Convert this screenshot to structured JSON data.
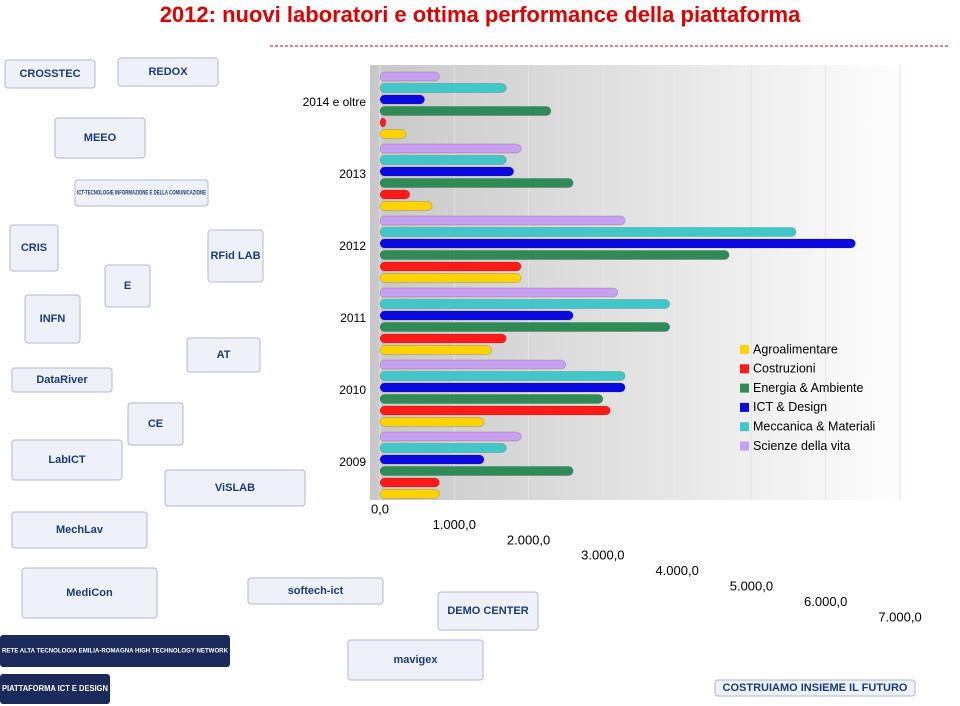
{
  "chart_data": {
    "type": "hbar",
    "title": "2012: nuovi laboratori e ottima performance della piattaforma",
    "categories": [
      "2014 e oltre",
      "2013",
      "2012",
      "2011",
      "2010",
      "2009"
    ],
    "series": [
      {
        "name": "Agroalimentare",
        "color": "#ffd200",
        "values": [
          350,
          700,
          1900,
          1500,
          1400,
          800
        ]
      },
      {
        "name": "Costruzioni",
        "color": "#ff1a1a",
        "values": [
          80,
          400,
          1900,
          1700,
          3100,
          800
        ]
      },
      {
        "name": "Energia & Ambiente",
        "color": "#2e8b57",
        "values": [
          2300,
          2600,
          4700,
          3900,
          3000,
          2600
        ]
      },
      {
        "name": "ICT & Design",
        "color": "#0a0ae0",
        "values": [
          600,
          1800,
          6400,
          2600,
          3300,
          1400
        ]
      },
      {
        "name": "Meccanica & Materiali",
        "color": "#40c8c8",
        "values": [
          1700,
          1700,
          5600,
          3900,
          3300,
          1700
        ]
      },
      {
        "name": "Scienze della vita",
        "color": "#c8a0f0",
        "values": [
          800,
          1900,
          3300,
          3200,
          2500,
          1900
        ]
      }
    ],
    "xlim": [
      0,
      7000
    ],
    "xticks": [
      {
        "value": 0,
        "label": "0,0"
      },
      {
        "value": 1000,
        "label": "1.000,0"
      },
      {
        "value": 2000,
        "label": "2.000,0"
      },
      {
        "value": 3000,
        "label": "3.000,0"
      },
      {
        "value": 4000,
        "label": "4.000,0"
      },
      {
        "value": 5000,
        "label": "5.000,0"
      },
      {
        "value": 6000,
        "label": "6.000,0"
      },
      {
        "value": 7000,
        "label": "7.000,0"
      }
    ],
    "grid": true,
    "legend": "right"
  },
  "logos": [
    "CROSSTEC",
    "REDOX",
    "MEEO",
    "ICT-TECNOLOGIE INFORMAZIONE E DELLA COMUNICAZIONE",
    "CRIS",
    "RFid LAB",
    "E",
    "INFN",
    "AT",
    "DataRiver",
    "CE",
    "LabICT",
    "ViSLAB",
    "MechLav",
    "MediCon",
    "softech-ict",
    "DEMO CENTER",
    "mavigex",
    "RETE ALTA TECNOLOGIA EMILIA-ROMAGNA HIGH TECHNOLOGY NETWORK",
    "PIATTAFORMA ICT E DESIGN",
    "COSTRUIAMO INSIEME IL FUTURO"
  ]
}
